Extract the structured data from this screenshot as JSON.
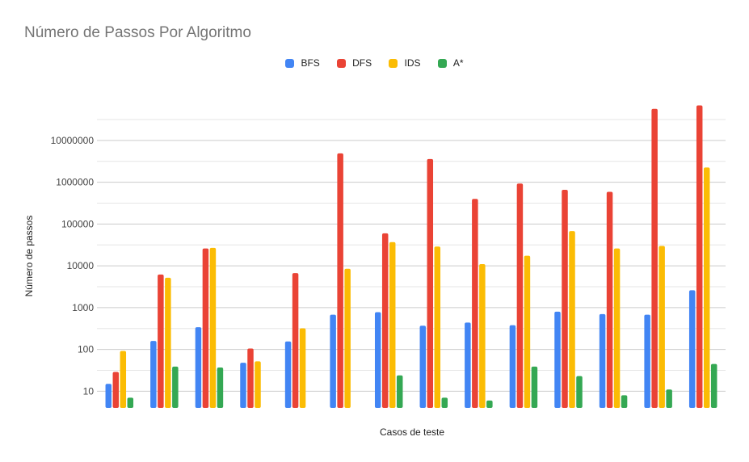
{
  "chart_data": {
    "type": "bar",
    "title": "Número de Passos Por Algoritmo",
    "xlabel": "Casos de teste",
    "ylabel": "Número de passos",
    "yscale": "log",
    "ylim": [
      4,
      110000000
    ],
    "yticks": [
      10,
      100,
      1000,
      10000,
      100000,
      1000000,
      10000000
    ],
    "ytick_labels": [
      "10",
      "100",
      "1000",
      "10000",
      "100000",
      "1000000",
      "10000000"
    ],
    "grid": true,
    "legend_position": "top",
    "categories": [
      "",
      "",
      "",
      "",
      "",
      "",
      "",
      "",
      "",
      "",
      "",
      "",
      "",
      ""
    ],
    "series": [
      {
        "name": "BFS",
        "color": "#4285f4",
        "values": [
          15,
          160,
          340,
          48,
          155,
          680,
          780,
          370,
          440,
          380,
          800,
          700,
          680,
          2600
        ]
      },
      {
        "name": "DFS",
        "color": "#ea4335",
        "values": [
          29,
          6200,
          26000,
          105,
          6700,
          4900000,
          60000,
          3600000,
          400000,
          930000,
          660000,
          590000,
          57000000,
          69000000
        ]
      },
      {
        "name": "IDS",
        "color": "#fbbc04",
        "values": [
          92,
          5200,
          27000,
          52,
          320,
          8500,
          37000,
          29000,
          11000,
          17500,
          68000,
          26000,
          30000,
          2250000
        ]
      },
      {
        "name": "A*",
        "color": "#34a853",
        "values": [
          7,
          39,
          37,
          null,
          null,
          null,
          24,
          7,
          6,
          39,
          23,
          8,
          11,
          45
        ]
      }
    ]
  }
}
